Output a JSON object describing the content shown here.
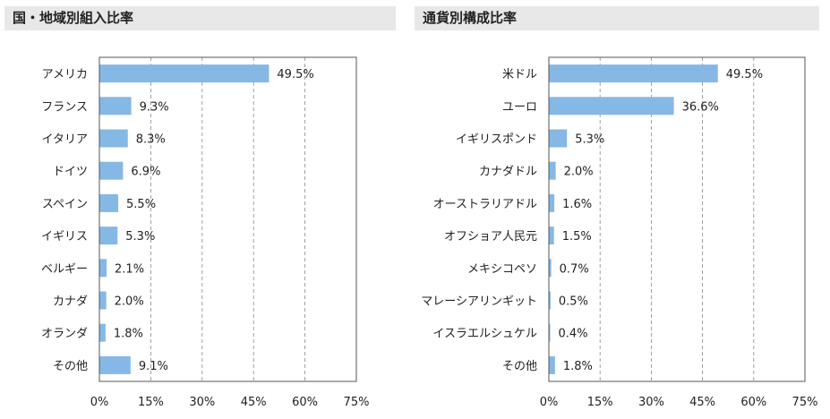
{
  "colors": {
    "bar": "#85b8e5",
    "frame": "#555555",
    "grid": "#888888",
    "title_bg": "#e8e8e8"
  },
  "chart_data": [
    {
      "type": "bar",
      "orientation": "horizontal",
      "title": "国・地域別組入比率",
      "categories": [
        "アメリカ",
        "フランス",
        "イタリア",
        "ドイツ",
        "スペイン",
        "イギリス",
        "ベルギー",
        "カナダ",
        "オランダ",
        "その他"
      ],
      "values": [
        49.5,
        9.3,
        8.3,
        6.9,
        5.5,
        5.3,
        2.1,
        2.0,
        1.8,
        9.1
      ],
      "value_labels": [
        "49.5%",
        "9.3%",
        "8.3%",
        "6.9%",
        "5.5%",
        "5.3%",
        "2.1%",
        "2.0%",
        "1.8%",
        "9.1%"
      ],
      "xlim": [
        0,
        75
      ],
      "xticks": [
        0,
        15,
        30,
        45,
        60,
        75
      ],
      "xtick_labels": [
        "0%",
        "15%",
        "30%",
        "45%",
        "60%",
        "75%"
      ],
      "grid": "vertical dashed"
    },
    {
      "type": "bar",
      "orientation": "horizontal",
      "title": "通貨別構成比率",
      "categories": [
        "米ドル",
        "ユーロ",
        "イギリスポンド",
        "カナダドル",
        "オーストラリアドル",
        "オフショア人民元",
        "メキシコペソ",
        "マレーシアリンギット",
        "イスラエルシュケル",
        "その他"
      ],
      "values": [
        49.5,
        36.6,
        5.3,
        2.0,
        1.6,
        1.5,
        0.7,
        0.5,
        0.4,
        1.8
      ],
      "value_labels": [
        "49.5%",
        "36.6%",
        "5.3%",
        "2.0%",
        "1.6%",
        "1.5%",
        "0.7%",
        "0.5%",
        "0.4%",
        "1.8%"
      ],
      "xlim": [
        0,
        75
      ],
      "xticks": [
        0,
        15,
        30,
        45,
        60,
        75
      ],
      "xtick_labels": [
        "0%",
        "15%",
        "30%",
        "45%",
        "60%",
        "75%"
      ],
      "grid": "vertical dashed"
    }
  ]
}
